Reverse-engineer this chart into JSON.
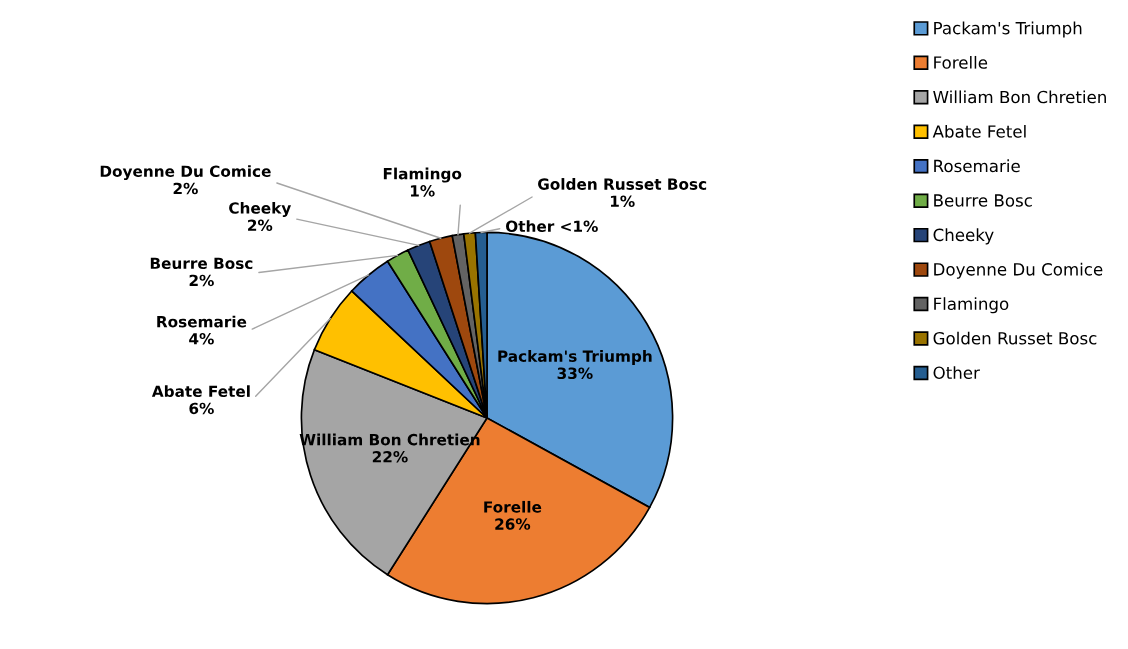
{
  "chart_data": {
    "type": "pie",
    "categories": [
      "Packam's Triumph",
      "Forelle",
      "William Bon Chretien",
      "Abate Fetel",
      "Rosemarie",
      "Beurre Bosc",
      "Cheeky",
      "Doyenne Du Comice",
      "Flamingo",
      "Golden Russet Bosc",
      "Other"
    ],
    "values": [
      33,
      26,
      22,
      6,
      4,
      2,
      2,
      2,
      1,
      1,
      1
    ],
    "value_labels": [
      "33%",
      "26%",
      "22%",
      "6%",
      "4%",
      "2%",
      "2%",
      "2%",
      "1%",
      "1%",
      "<1%"
    ],
    "colors": [
      "#5b9bd5",
      "#ed7d31",
      "#a5a5a5",
      "#ffc000",
      "#4472c4",
      "#70ad47",
      "#264478",
      "#9e480e",
      "#636363",
      "#997300",
      "#255e91"
    ],
    "legend": "right"
  }
}
